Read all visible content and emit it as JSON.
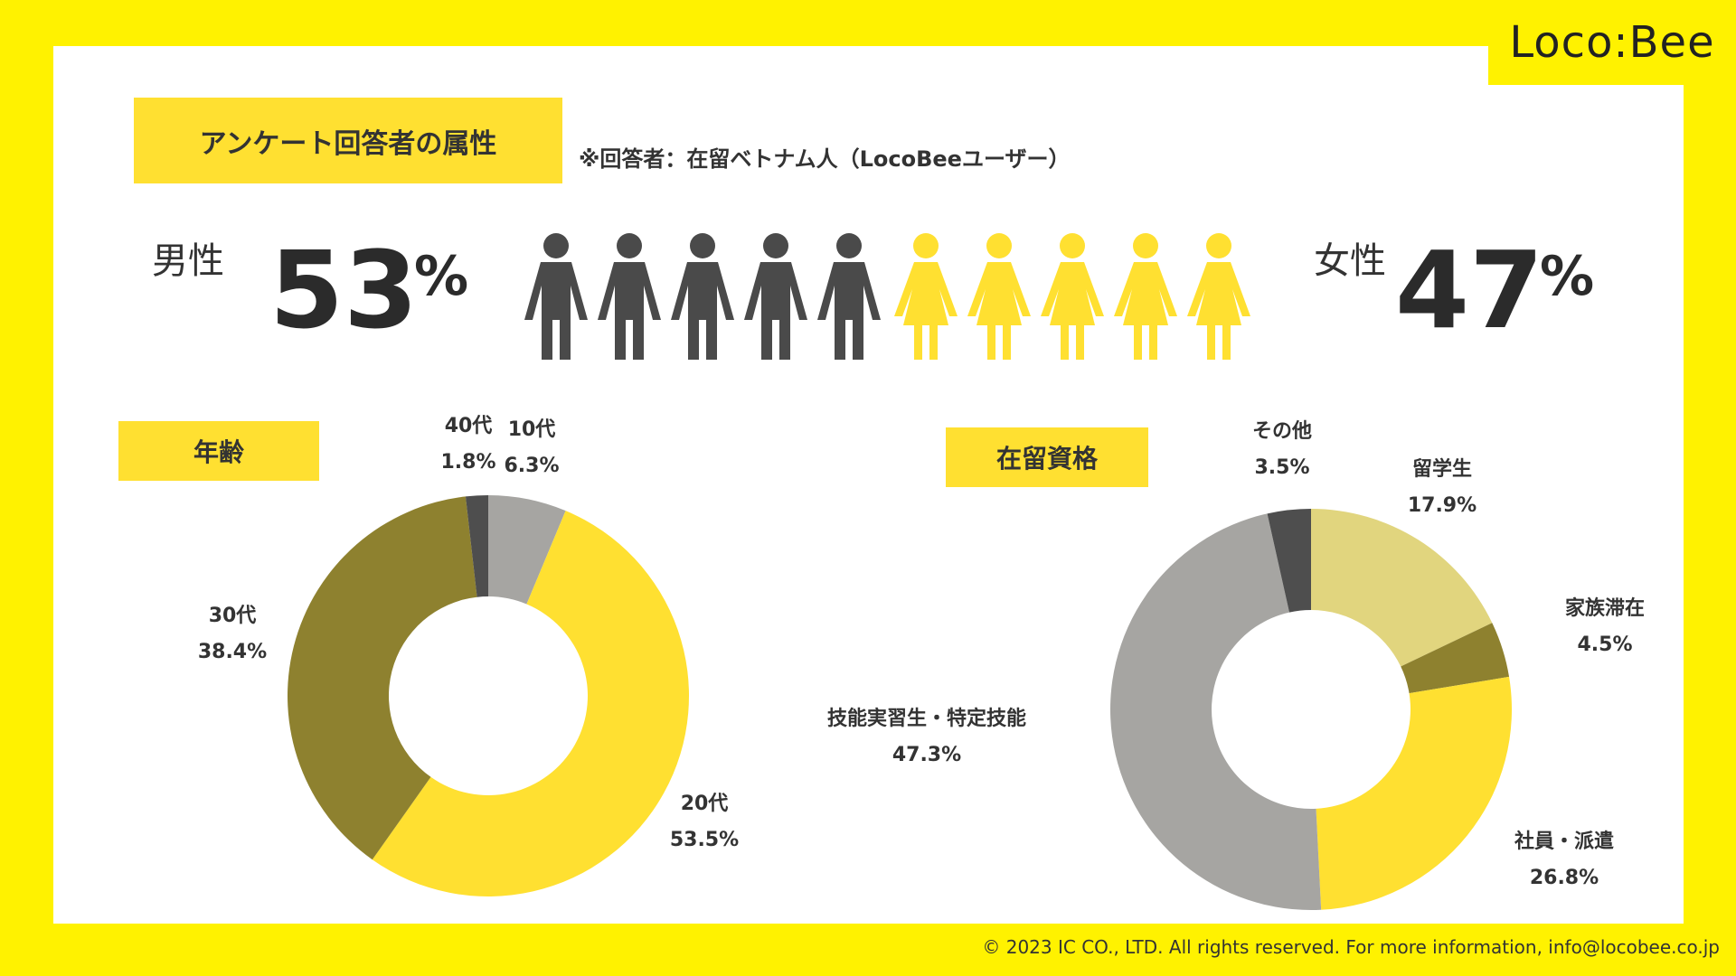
{
  "brand": {
    "logo": "Loco:Bee"
  },
  "header": {
    "title": "アンケート回答者の属性",
    "note": "※回答者：在留ベトナム人（LocoBeeユーザー）"
  },
  "gender": {
    "male_label": "男性",
    "male_value": "53",
    "female_label": "女性",
    "female_value": "47",
    "percent_sign": "%",
    "male_color": "#4a4a4a",
    "female_color": "#ffe031",
    "male_icons": 5,
    "female_icons": 5
  },
  "chart_data": [
    {
      "type": "pie",
      "title": "年齢",
      "variant": "donut",
      "categories": [
        "10代",
        "20代",
        "30代",
        "40代"
      ],
      "values": [
        6.3,
        53.5,
        38.4,
        1.8
      ],
      "value_labels": [
        "6.3%",
        "53.5%",
        "38.4%",
        "1.8%"
      ],
      "colors": [
        "#a6a5a2",
        "#ffe031",
        "#8e812f",
        "#4e4e4e"
      ]
    },
    {
      "type": "pie",
      "title": "在留資格",
      "variant": "donut",
      "categories": [
        "留学生",
        "家族滞在",
        "社員・派遣",
        "技能実習生・特定技能",
        "その他"
      ],
      "values": [
        17.9,
        4.5,
        26.8,
        47.3,
        3.5
      ],
      "value_labels": [
        "17.9%",
        "4.5%",
        "26.8%",
        "47.3%",
        "3.5%"
      ],
      "colors": [
        "#e1d57e",
        "#8e812f",
        "#ffe031",
        "#a6a5a2",
        "#4e4e4e"
      ]
    }
  ],
  "footer": {
    "copyright": "© 2023 IC CO., LTD. All rights reserved. For more information, info@locobee.co.jp"
  }
}
